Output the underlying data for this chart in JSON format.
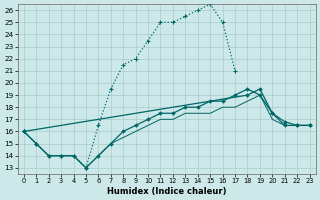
{
  "xlabel": "Humidex (Indice chaleur)",
  "background_color": "#cce8e8",
  "grid_color": "#aacccc",
  "line_color": "#006666",
  "xlim": [
    -0.5,
    23.5
  ],
  "ylim": [
    12.5,
    26.5
  ],
  "xticks": [
    0,
    1,
    2,
    3,
    4,
    5,
    6,
    7,
    8,
    9,
    10,
    11,
    12,
    13,
    14,
    15,
    16,
    17,
    18,
    19,
    20,
    21,
    22,
    23
  ],
  "yticks": [
    13,
    14,
    15,
    16,
    17,
    18,
    19,
    20,
    21,
    22,
    23,
    24,
    25,
    26
  ],
  "curve1_x": [
    0,
    1,
    2,
    3,
    4,
    5,
    6,
    7,
    8,
    9,
    10,
    11,
    12,
    13,
    14,
    15,
    16,
    17
  ],
  "curve1_y": [
    16,
    15,
    14,
    14,
    14,
    13,
    16.5,
    19.5,
    21.5,
    22,
    23.5,
    25,
    25,
    25.5,
    26,
    26.5,
    25,
    21
  ],
  "curve2_x": [
    0,
    1,
    2,
    3,
    4,
    5,
    6,
    7,
    8,
    9,
    10,
    11,
    12,
    13,
    14,
    15,
    16,
    17,
    18,
    19,
    20,
    21,
    22,
    23
  ],
  "curve2_y": [
    16,
    15,
    14,
    14,
    14,
    13,
    14,
    15,
    16,
    16.5,
    17,
    17.5,
    17.5,
    18,
    18,
    18.5,
    18.5,
    19,
    19.5,
    19,
    17.5,
    16.5,
    16.5,
    16.5
  ],
  "curve3_x": [
    0,
    1,
    2,
    3,
    4,
    5,
    6,
    7,
    8,
    9,
    10,
    11,
    12,
    13,
    14,
    15,
    16,
    17,
    18,
    19,
    20,
    21,
    22,
    23
  ],
  "curve3_y": [
    16,
    15,
    14,
    14,
    14,
    13,
    14,
    15,
    15.5,
    16,
    16.5,
    17,
    17,
    17.5,
    17.5,
    17.5,
    18,
    18,
    18.5,
    19,
    17,
    16.5,
    16.5,
    16.5
  ],
  "curve4_x": [
    0,
    18,
    19,
    20,
    21,
    22,
    23
  ],
  "curve4_y": [
    16,
    19,
    19.5,
    17.5,
    16.8,
    16.5,
    16.5
  ]
}
